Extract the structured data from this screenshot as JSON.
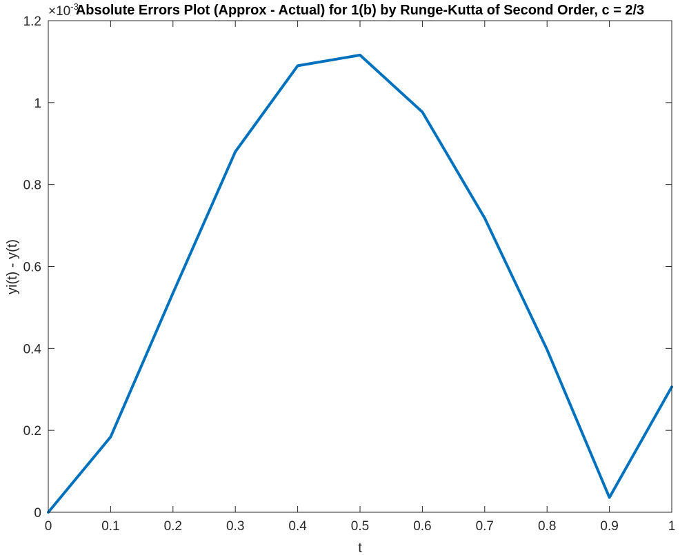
{
  "chart_data": {
    "type": "line",
    "title": "Absolute Errors Plot (Approx - Actual) for 1(b) by Runge-Kutta of Second Order, c = 2/3",
    "xlabel": "t",
    "ylabel": "yi(t) - y(t)",
    "y_exponent_base": "×10",
    "y_exponent_power": "-3",
    "xlim": [
      0,
      1
    ],
    "ylim": [
      0,
      1.2
    ],
    "x_ticks": [
      "0",
      "0.1",
      "0.2",
      "0.3",
      "0.4",
      "0.5",
      "0.6",
      "0.7",
      "0.8",
      "0.9",
      "1"
    ],
    "y_ticks": [
      "0",
      "0.2",
      "0.4",
      "0.6",
      "0.8",
      "1",
      "1.2"
    ],
    "grid": false,
    "series": [
      {
        "color": "#0072BD",
        "x": [
          0,
          0.1,
          0.2,
          0.3,
          0.4,
          0.5,
          0.6,
          0.7,
          0.8,
          0.9,
          1
        ],
        "y": [
          0,
          0.184,
          0.535,
          0.88,
          1.09,
          1.116,
          0.977,
          0.718,
          0.397,
          0.036,
          0.306
        ]
      }
    ]
  }
}
